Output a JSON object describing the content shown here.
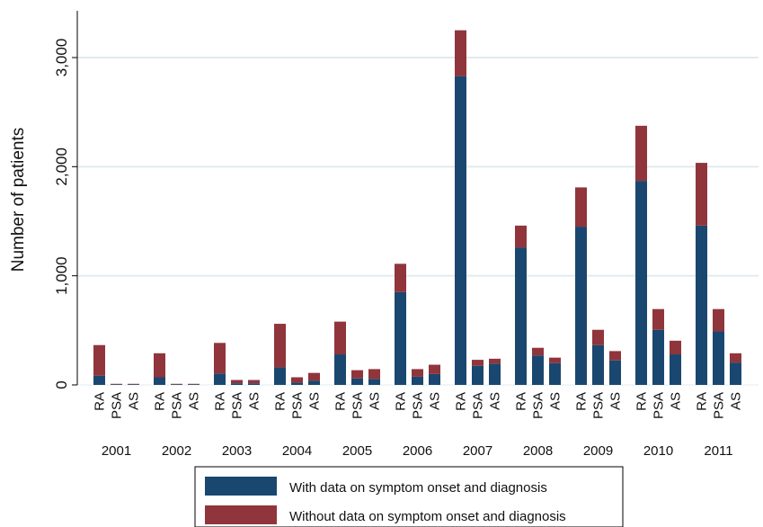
{
  "chart_data": {
    "type": "bar",
    "stacked": true,
    "ylabel": "Number of patients",
    "ylim": [
      0,
      3400
    ],
    "yticks": [
      0,
      1000,
      2000,
      3000
    ],
    "ytick_labels": [
      "0",
      "1,000",
      "2,000",
      "3,000"
    ],
    "grid": true,
    "groups": [
      "2001",
      "2002",
      "2003",
      "2004",
      "2005",
      "2006",
      "2007",
      "2008",
      "2009",
      "2010",
      "2011"
    ],
    "categories": [
      "RA",
      "PSA",
      "AS"
    ],
    "series": [
      {
        "name": "With data on symptom onset and diagnosis",
        "color": "#1a476f",
        "values": [
          [
            85,
            5,
            5
          ],
          [
            70,
            5,
            5
          ],
          [
            105,
            15,
            15
          ],
          [
            160,
            20,
            40
          ],
          [
            280,
            60,
            55
          ],
          [
            850,
            75,
            100
          ],
          [
            2830,
            175,
            195
          ],
          [
            1260,
            270,
            200
          ],
          [
            1450,
            365,
            225
          ],
          [
            1870,
            505,
            280
          ],
          [
            1460,
            490,
            205
          ]
        ]
      },
      {
        "name": "Without data on symptom onset and diagnosis",
        "color": "#90353b",
        "values": [
          [
            280,
            5,
            5
          ],
          [
            220,
            5,
            5
          ],
          [
            280,
            30,
            30
          ],
          [
            400,
            50,
            70
          ],
          [
            300,
            75,
            90
          ],
          [
            260,
            70,
            85
          ],
          [
            420,
            55,
            45
          ],
          [
            200,
            70,
            50
          ],
          [
            360,
            140,
            85
          ],
          [
            505,
            190,
            125
          ],
          [
            575,
            205,
            85
          ]
        ]
      }
    ],
    "legend_position": "bottom"
  }
}
